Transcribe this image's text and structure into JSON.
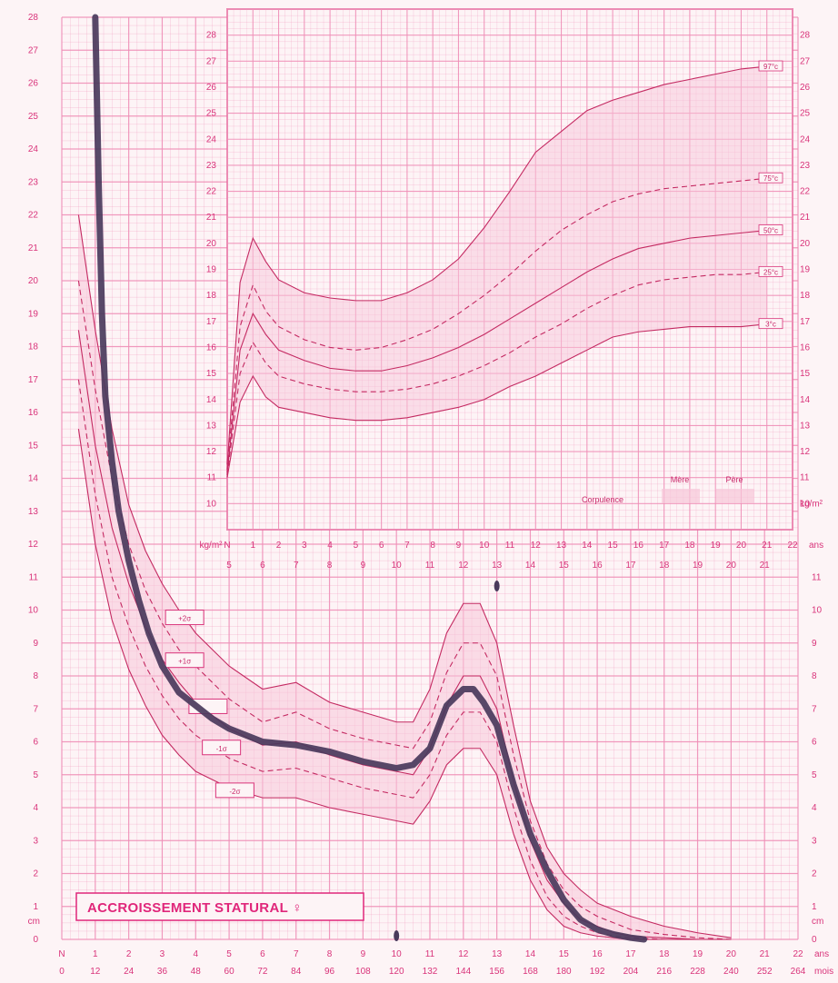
{
  "colors": {
    "accent": "#e0267a",
    "grid": "#ef8fb7",
    "band": "#f7c6d9",
    "child": "#4a3a5c",
    "background": "#fdf4f6"
  },
  "chart_data": [
    {
      "id": "corpulence",
      "type": "line",
      "xlabel": "ans",
      "ylabel": "kg/m²",
      "xlim": [
        0,
        22
      ],
      "ylim": [
        9,
        29
      ],
      "x_ticks": [
        "N",
        "1",
        "2",
        "3",
        "4",
        "5",
        "6",
        "7",
        "8",
        "9",
        "10",
        "11",
        "12",
        "13",
        "14",
        "15",
        "16",
        "17",
        "18",
        "19",
        "20",
        "21",
        "22"
      ],
      "y_ticks": [
        10,
        11,
        12,
        13,
        14,
        15,
        16,
        17,
        18,
        19,
        20,
        21,
        22,
        23,
        24,
        25,
        26,
        27,
        28
      ],
      "legend": {
        "label": "Corpulence",
        "columns": [
          "Mère",
          "Père"
        ]
      },
      "x": [
        0,
        0.5,
        1,
        1.5,
        2,
        3,
        4,
        5,
        6,
        7,
        8,
        9,
        10,
        11,
        12,
        13,
        14,
        15,
        16,
        17,
        18,
        19,
        20,
        21
      ],
      "series": [
        {
          "name": "97°c",
          "style": "solid",
          "values": [
            11.5,
            18.5,
            20.2,
            19.3,
            18.6,
            18.1,
            17.9,
            17.8,
            17.8,
            18.1,
            18.6,
            19.4,
            20.6,
            22.0,
            23.5,
            24.3,
            25.1,
            25.5,
            25.8,
            26.1,
            26.3,
            26.5,
            26.7,
            26.8
          ]
        },
        {
          "name": "75°c",
          "style": "dashed",
          "values": [
            11.3,
            16.8,
            18.4,
            17.4,
            16.8,
            16.3,
            16.0,
            15.9,
            16.0,
            16.3,
            16.7,
            17.3,
            18.0,
            18.8,
            19.7,
            20.5,
            21.1,
            21.6,
            21.9,
            22.1,
            22.2,
            22.3,
            22.4,
            22.5
          ]
        },
        {
          "name": "50°c",
          "style": "solid",
          "values": [
            11.2,
            15.9,
            17.3,
            16.5,
            15.9,
            15.5,
            15.2,
            15.1,
            15.1,
            15.3,
            15.6,
            16.0,
            16.5,
            17.1,
            17.7,
            18.3,
            18.9,
            19.4,
            19.8,
            20.0,
            20.2,
            20.3,
            20.4,
            20.5
          ]
        },
        {
          "name": "25°c",
          "style": "dashed",
          "values": [
            11.1,
            15.0,
            16.2,
            15.4,
            14.9,
            14.6,
            14.4,
            14.3,
            14.3,
            14.4,
            14.6,
            14.9,
            15.3,
            15.8,
            16.4,
            16.9,
            17.5,
            18.0,
            18.4,
            18.6,
            18.7,
            18.8,
            18.8,
            18.9
          ]
        },
        {
          "name": "3°c",
          "style": "solid",
          "values": [
            11.0,
            13.9,
            14.9,
            14.1,
            13.7,
            13.5,
            13.3,
            13.2,
            13.2,
            13.3,
            13.5,
            13.7,
            14.0,
            14.5,
            14.9,
            15.4,
            15.9,
            16.4,
            16.6,
            16.7,
            16.8,
            16.8,
            16.8,
            16.9
          ]
        }
      ]
    },
    {
      "id": "accroissement",
      "type": "line",
      "title": "ACCROISSEMENT STATURAL ♀",
      "ylabel": "cm",
      "xlim": [
        0,
        22
      ],
      "ylim": [
        0,
        28
      ],
      "x_ticks_years": [
        "N",
        "1",
        "2",
        "3",
        "4",
        "5",
        "6",
        "7",
        "8",
        "9",
        "10",
        "11",
        "12",
        "13",
        "14",
        "15",
        "16",
        "17",
        "18",
        "19",
        "20",
        "21",
        "22"
      ],
      "x_ticks_months": [
        "0",
        "12",
        "24",
        "36",
        "48",
        "60",
        "72",
        "84",
        "96",
        "108",
        "120",
        "132",
        "144",
        "156",
        "168",
        "180",
        "192",
        "204",
        "216",
        "228",
        "240",
        "252",
        "264"
      ],
      "x_unit_years": "ans",
      "x_unit_months": "mois",
      "y_ticks": [
        0,
        1,
        2,
        3,
        4,
        5,
        6,
        7,
        8,
        9,
        10,
        11,
        12,
        13,
        14,
        15,
        16,
        17,
        18,
        19,
        20,
        21,
        22,
        23,
        24,
        25,
        26,
        27,
        28
      ],
      "y_ticks_right": [
        0,
        1,
        2,
        3,
        4,
        5,
        6,
        7,
        8,
        9,
        10,
        11
      ],
      "top_year_ticks": [
        "5",
        "6",
        "7",
        "8",
        "9",
        "10",
        "11",
        "12",
        "13",
        "14",
        "15",
        "16",
        "17",
        "18",
        "19",
        "20",
        "21"
      ],
      "sigma_labels": [
        "+2σ",
        "+1σ",
        "",
        "-1σ",
        "-2σ"
      ],
      "x": [
        0.5,
        1,
        1.5,
        2,
        2.5,
        3,
        3.5,
        4,
        5,
        6,
        7,
        8,
        9,
        10,
        10.5,
        11,
        11.5,
        12,
        12.5,
        13,
        13.5,
        14,
        14.5,
        15,
        15.5,
        16,
        16.5,
        17,
        18,
        19,
        20
      ],
      "series": [
        {
          "name": "+2σ",
          "style": "solid",
          "values": [
            22.0,
            18.5,
            15.5,
            13.2,
            11.8,
            10.8,
            10.0,
            9.3,
            8.3,
            7.6,
            7.8,
            7.2,
            6.9,
            6.6,
            6.6,
            7.6,
            9.3,
            10.2,
            10.2,
            9.0,
            6.5,
            4.2,
            2.8,
            2.0,
            1.5,
            1.1,
            0.9,
            0.7,
            0.4,
            0.2,
            0.05
          ]
        },
        {
          "name": "+1σ",
          "style": "dashed",
          "values": [
            20.0,
            16.7,
            14.0,
            12.0,
            10.6,
            9.6,
            8.8,
            8.3,
            7.3,
            6.6,
            6.9,
            6.4,
            6.1,
            5.9,
            5.8,
            6.6,
            8.1,
            9.0,
            9.0,
            8.0,
            5.6,
            3.6,
            2.3,
            1.5,
            1.0,
            0.7,
            0.5,
            0.3,
            0.15,
            0.05,
            0.0
          ]
        },
        {
          "name": "",
          "style": "solid",
          "values": [
            18.5,
            15.0,
            12.5,
            10.8,
            9.5,
            8.5,
            7.8,
            7.2,
            6.4,
            5.9,
            6.0,
            5.6,
            5.3,
            5.1,
            5.0,
            5.8,
            7.1,
            8.0,
            8.0,
            7.0,
            4.8,
            3.0,
            1.8,
            1.1,
            0.6,
            0.4,
            0.2,
            0.1,
            0.05,
            0.0,
            0.0
          ]
        },
        {
          "name": "-1σ",
          "style": "dashed",
          "values": [
            17.0,
            13.5,
            11.0,
            9.5,
            8.3,
            7.4,
            6.7,
            6.2,
            5.5,
            5.1,
            5.2,
            4.9,
            4.6,
            4.4,
            4.3,
            5.0,
            6.2,
            6.9,
            6.9,
            6.0,
            4.0,
            2.4,
            1.3,
            0.7,
            0.4,
            0.2,
            0.1,
            0.05,
            0.0,
            0.0,
            0.0
          ]
        },
        {
          "name": "-2σ",
          "style": "solid",
          "values": [
            15.5,
            12.0,
            9.7,
            8.2,
            7.1,
            6.2,
            5.6,
            5.1,
            4.6,
            4.3,
            4.3,
            4.0,
            3.8,
            3.6,
            3.5,
            4.2,
            5.3,
            5.8,
            5.8,
            5.0,
            3.2,
            1.8,
            0.9,
            0.4,
            0.2,
            0.1,
            0.05,
            0.0,
            0.0,
            0.0,
            0.0
          ]
        }
      ],
      "child_curve": {
        "x": [
          1.0,
          1.1,
          1.2,
          1.3,
          1.5,
          1.7,
          2.0,
          2.3,
          2.6,
          3.0,
          3.5,
          4.0,
          4.5,
          5.0,
          6.0,
          7.0,
          8.0,
          9.0,
          10.0,
          10.5,
          11.0,
          11.5,
          12.0,
          12.3,
          12.6,
          13.0,
          13.5,
          14.0,
          14.5,
          15.0,
          15.5,
          16.0,
          16.5,
          17.0,
          17.4
        ],
        "values": [
          28.0,
          23.0,
          19.0,
          16.5,
          14.5,
          13.0,
          11.5,
          10.3,
          9.3,
          8.3,
          7.5,
          7.1,
          6.7,
          6.4,
          6.0,
          5.9,
          5.7,
          5.4,
          5.2,
          5.3,
          5.8,
          7.1,
          7.6,
          7.6,
          7.2,
          6.5,
          4.7,
          3.2,
          2.1,
          1.2,
          0.6,
          0.3,
          0.15,
          0.05,
          0.0
        ]
      }
    }
  ]
}
